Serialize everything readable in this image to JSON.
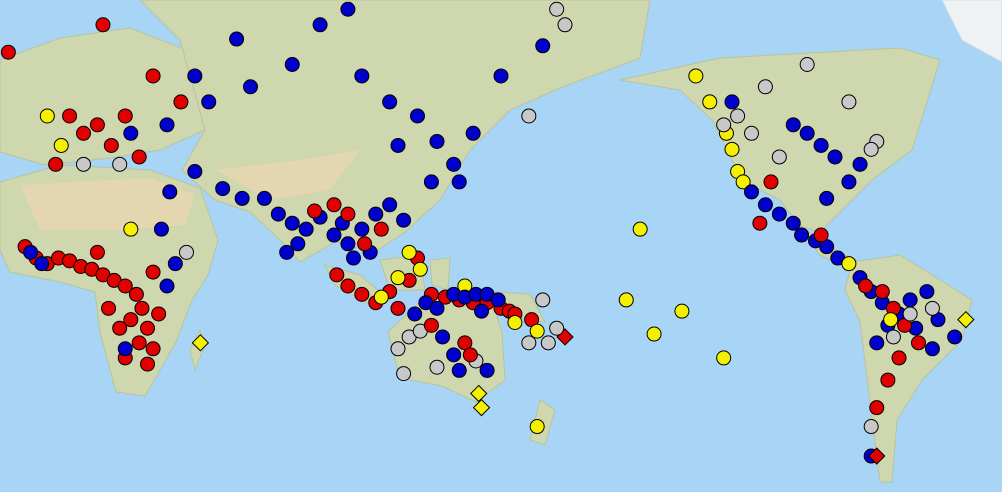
{
  "map": {
    "projection": "mercator",
    "center_lon": 155,
    "marker_styles": [
      {
        "shape": "circle",
        "color": "#e00000"
      },
      {
        "shape": "circle",
        "color": "#0000cc"
      },
      {
        "shape": "circle",
        "color": "#c8c8c8"
      },
      {
        "shape": "circle",
        "color": "#f5f000"
      },
      {
        "shape": "diamond",
        "color": "#f5f000"
      },
      {
        "shape": "diamond",
        "color": "#e00000"
      }
    ],
    "markers": [
      [
        -22,
        64,
        0
      ],
      [
        -5,
        40,
        0
      ],
      [
        0,
        52,
        0
      ],
      [
        5,
        48,
        0
      ],
      [
        10,
        50,
        0
      ],
      [
        15,
        45,
        0
      ],
      [
        20,
        52,
        0
      ],
      [
        30,
        60,
        0
      ],
      [
        12,
        68,
        0
      ],
      [
        40,
        55,
        0
      ],
      [
        25,
        42,
        0
      ],
      [
        -3,
        45,
        3
      ],
      [
        -8,
        52,
        3
      ],
      [
        5,
        40,
        2
      ],
      [
        18,
        40,
        2
      ],
      [
        22,
        48,
        1
      ],
      [
        35,
        50,
        1
      ],
      [
        50,
        55,
        1
      ],
      [
        45,
        60,
        1
      ],
      [
        -16,
        14,
        0
      ],
      [
        -12,
        10,
        0
      ],
      [
        -8,
        8,
        0
      ],
      [
        -4,
        10,
        0
      ],
      [
        0,
        9,
        0
      ],
      [
        4,
        7,
        0
      ],
      [
        8,
        6,
        0
      ],
      [
        12,
        4,
        0
      ],
      [
        16,
        2,
        0
      ],
      [
        20,
        0,
        0
      ],
      [
        24,
        -3,
        0
      ],
      [
        26,
        -8,
        0
      ],
      [
        22,
        -12,
        0
      ],
      [
        18,
        -15,
        0
      ],
      [
        28,
        -15,
        0
      ],
      [
        32,
        -10,
        0
      ],
      [
        25,
        -20,
        0
      ],
      [
        20,
        -25,
        0
      ],
      [
        28,
        -27,
        0
      ],
      [
        30,
        -22,
        0
      ],
      [
        14,
        -8,
        0
      ],
      [
        10,
        12,
        0
      ],
      [
        30,
        5,
        0
      ],
      [
        -14,
        12,
        1
      ],
      [
        -10,
        8,
        1
      ],
      [
        35,
        0,
        1
      ],
      [
        38,
        8,
        1
      ],
      [
        33,
        20,
        1
      ],
      [
        36,
        32,
        1
      ],
      [
        20,
        -22,
        1
      ],
      [
        42,
        12,
        2
      ],
      [
        22,
        20,
        3
      ],
      [
        47,
        -20,
        4
      ],
      [
        45,
        38,
        1
      ],
      [
        55,
        33,
        1
      ],
      [
        62,
        30,
        1
      ],
      [
        70,
        30,
        1
      ],
      [
        75,
        25,
        1
      ],
      [
        80,
        22,
        1
      ],
      [
        85,
        20,
        1
      ],
      [
        90,
        24,
        1
      ],
      [
        95,
        18,
        1
      ],
      [
        100,
        15,
        1
      ],
      [
        105,
        20,
        1
      ],
      [
        110,
        25,
        1
      ],
      [
        78,
        12,
        1
      ],
      [
        82,
        15,
        1
      ],
      [
        98,
        22,
        1
      ],
      [
        102,
        10,
        1
      ],
      [
        108,
        12,
        1
      ],
      [
        115,
        28,
        1
      ],
      [
        120,
        23,
        1
      ],
      [
        95,
        28,
        0
      ],
      [
        100,
        25,
        0
      ],
      [
        112,
        20,
        0
      ],
      [
        106,
        15,
        0
      ],
      [
        88,
        26,
        0
      ],
      [
        65,
        58,
        1
      ],
      [
        80,
        62,
        1
      ],
      [
        90,
        68,
        1
      ],
      [
        105,
        60,
        1
      ],
      [
        115,
        55,
        1
      ],
      [
        125,
        52,
        1
      ],
      [
        132,
        46,
        1
      ],
      [
        138,
        40,
        1
      ],
      [
        140,
        35,
        1
      ],
      [
        130,
        35,
        1
      ],
      [
        145,
        48,
        1
      ],
      [
        155,
        60,
        1
      ],
      [
        170,
        65,
        1
      ],
      [
        100,
        70,
        1
      ],
      [
        60,
        66,
        1
      ],
      [
        118,
        45,
        1
      ],
      [
        165,
        52,
        2
      ],
      [
        178,
        68,
        2
      ],
      [
        175,
        70,
        2
      ],
      [
        96,
        4,
        0
      ],
      [
        100,
        0,
        0
      ],
      [
        105,
        -3,
        0
      ],
      [
        110,
        -6,
        0
      ],
      [
        115,
        -2,
        0
      ],
      [
        118,
        -8,
        0
      ],
      [
        122,
        2,
        0
      ],
      [
        125,
        10,
        0
      ],
      [
        130,
        -3,
        0
      ],
      [
        135,
        -4,
        0
      ],
      [
        140,
        -5,
        0
      ],
      [
        145,
        -6,
        0
      ],
      [
        150,
        -6,
        0
      ],
      [
        155,
        -8,
        0
      ],
      [
        158,
        -9,
        0
      ],
      [
        160,
        -10,
        0
      ],
      [
        166,
        -12,
        0
      ],
      [
        178,
        -18,
        5
      ],
      [
        112,
        -4,
        3
      ],
      [
        118,
        3,
        3
      ],
      [
        122,
        12,
        3
      ],
      [
        126,
        6,
        3
      ],
      [
        142,
        0,
        3
      ],
      [
        160,
        -13,
        3
      ],
      [
        168,
        -16,
        3
      ],
      [
        172,
        -20,
        2
      ],
      [
        175,
        -15,
        2
      ],
      [
        165,
        -20,
        2
      ],
      [
        128,
        -6,
        1
      ],
      [
        132,
        -8,
        1
      ],
      [
        138,
        -3,
        1
      ],
      [
        142,
        -4,
        1
      ],
      [
        146,
        -3,
        1
      ],
      [
        150,
        -3,
        1
      ],
      [
        154,
        -5,
        1
      ],
      [
        148,
        -9,
        1
      ],
      [
        124,
        -10,
        1
      ],
      [
        170,
        -5,
        2
      ],
      [
        118,
        -22,
        2
      ],
      [
        122,
        -18,
        2
      ],
      [
        126,
        -16,
        2
      ],
      [
        130,
        -14,
        0
      ],
      [
        134,
        -18,
        1
      ],
      [
        138,
        -24,
        1
      ],
      [
        142,
        -20,
        0
      ],
      [
        146,
        -26,
        2
      ],
      [
        150,
        -29,
        1
      ],
      [
        120,
        -30,
        2
      ],
      [
        132,
        -28,
        2
      ],
      [
        140,
        -29,
        1
      ],
      [
        144,
        -24,
        0
      ],
      [
        147,
        -36,
        4
      ],
      [
        148,
        -40,
        4
      ],
      [
        168,
        -45,
        3
      ],
      [
        -155,
        20,
        3
      ],
      [
        -140,
        -9,
        3
      ],
      [
        -150,
        -17,
        3
      ],
      [
        -125,
        -25,
        3
      ],
      [
        -160,
        -5,
        3
      ],
      [
        -135,
        60,
        3
      ],
      [
        -130,
        55,
        3
      ],
      [
        -124,
        48,
        3
      ],
      [
        -122,
        44,
        3
      ],
      [
        -120,
        38,
        3
      ],
      [
        -118,
        35,
        3
      ],
      [
        -125,
        50,
        2
      ],
      [
        -120,
        52,
        2
      ],
      [
        -115,
        48,
        2
      ],
      [
        -110,
        58,
        2
      ],
      [
        -95,
        62,
        2
      ],
      [
        -80,
        55,
        2
      ],
      [
        -70,
        46,
        2
      ],
      [
        -72,
        44,
        2
      ],
      [
        -105,
        42,
        2
      ],
      [
        -115,
        32,
        1
      ],
      [
        -110,
        28,
        1
      ],
      [
        -105,
        25,
        1
      ],
      [
        -100,
        22,
        1
      ],
      [
        -97,
        18,
        1
      ],
      [
        -92,
        16,
        1
      ],
      [
        -88,
        14,
        1
      ],
      [
        -84,
        10,
        1
      ],
      [
        -95,
        48,
        1
      ],
      [
        -90,
        45,
        1
      ],
      [
        -85,
        42,
        1
      ],
      [
        -80,
        35,
        1
      ],
      [
        -76,
        40,
        1
      ],
      [
        -88,
        30,
        1
      ],
      [
        -100,
        50,
        1
      ],
      [
        -122,
        55,
        1
      ],
      [
        -108,
        35,
        0
      ],
      [
        -112,
        22,
        0
      ],
      [
        -90,
        18,
        0
      ],
      [
        -80,
        8,
        3
      ],
      [
        -76,
        3,
        1
      ],
      [
        -72,
        -2,
        1
      ],
      [
        -68,
        -6,
        1
      ],
      [
        -62,
        -10,
        1
      ],
      [
        -58,
        -5,
        1
      ],
      [
        -52,
        -2,
        1
      ],
      [
        -48,
        -12,
        1
      ],
      [
        -42,
        -18,
        1
      ],
      [
        -66,
        -14,
        1
      ],
      [
        -56,
        -15,
        1
      ],
      [
        -70,
        -20,
        1
      ],
      [
        -50,
        -22,
        1
      ],
      [
        -72,
        -52,
        1
      ],
      [
        -74,
        0,
        0
      ],
      [
        -68,
        -2,
        0
      ],
      [
        -64,
        -8,
        0
      ],
      [
        -60,
        -14,
        0
      ],
      [
        -55,
        -20,
        0
      ],
      [
        -62,
        -25,
        0
      ],
      [
        -66,
        -32,
        0
      ],
      [
        -70,
        -40,
        0
      ],
      [
        -58,
        -10,
        2
      ],
      [
        -64,
        -18,
        2
      ],
      [
        -72,
        -45,
        2
      ],
      [
        -50,
        -8,
        2
      ],
      [
        -65,
        -12,
        3
      ],
      [
        -38,
        -12,
        4
      ],
      [
        -70,
        -52,
        5
      ]
    ]
  }
}
